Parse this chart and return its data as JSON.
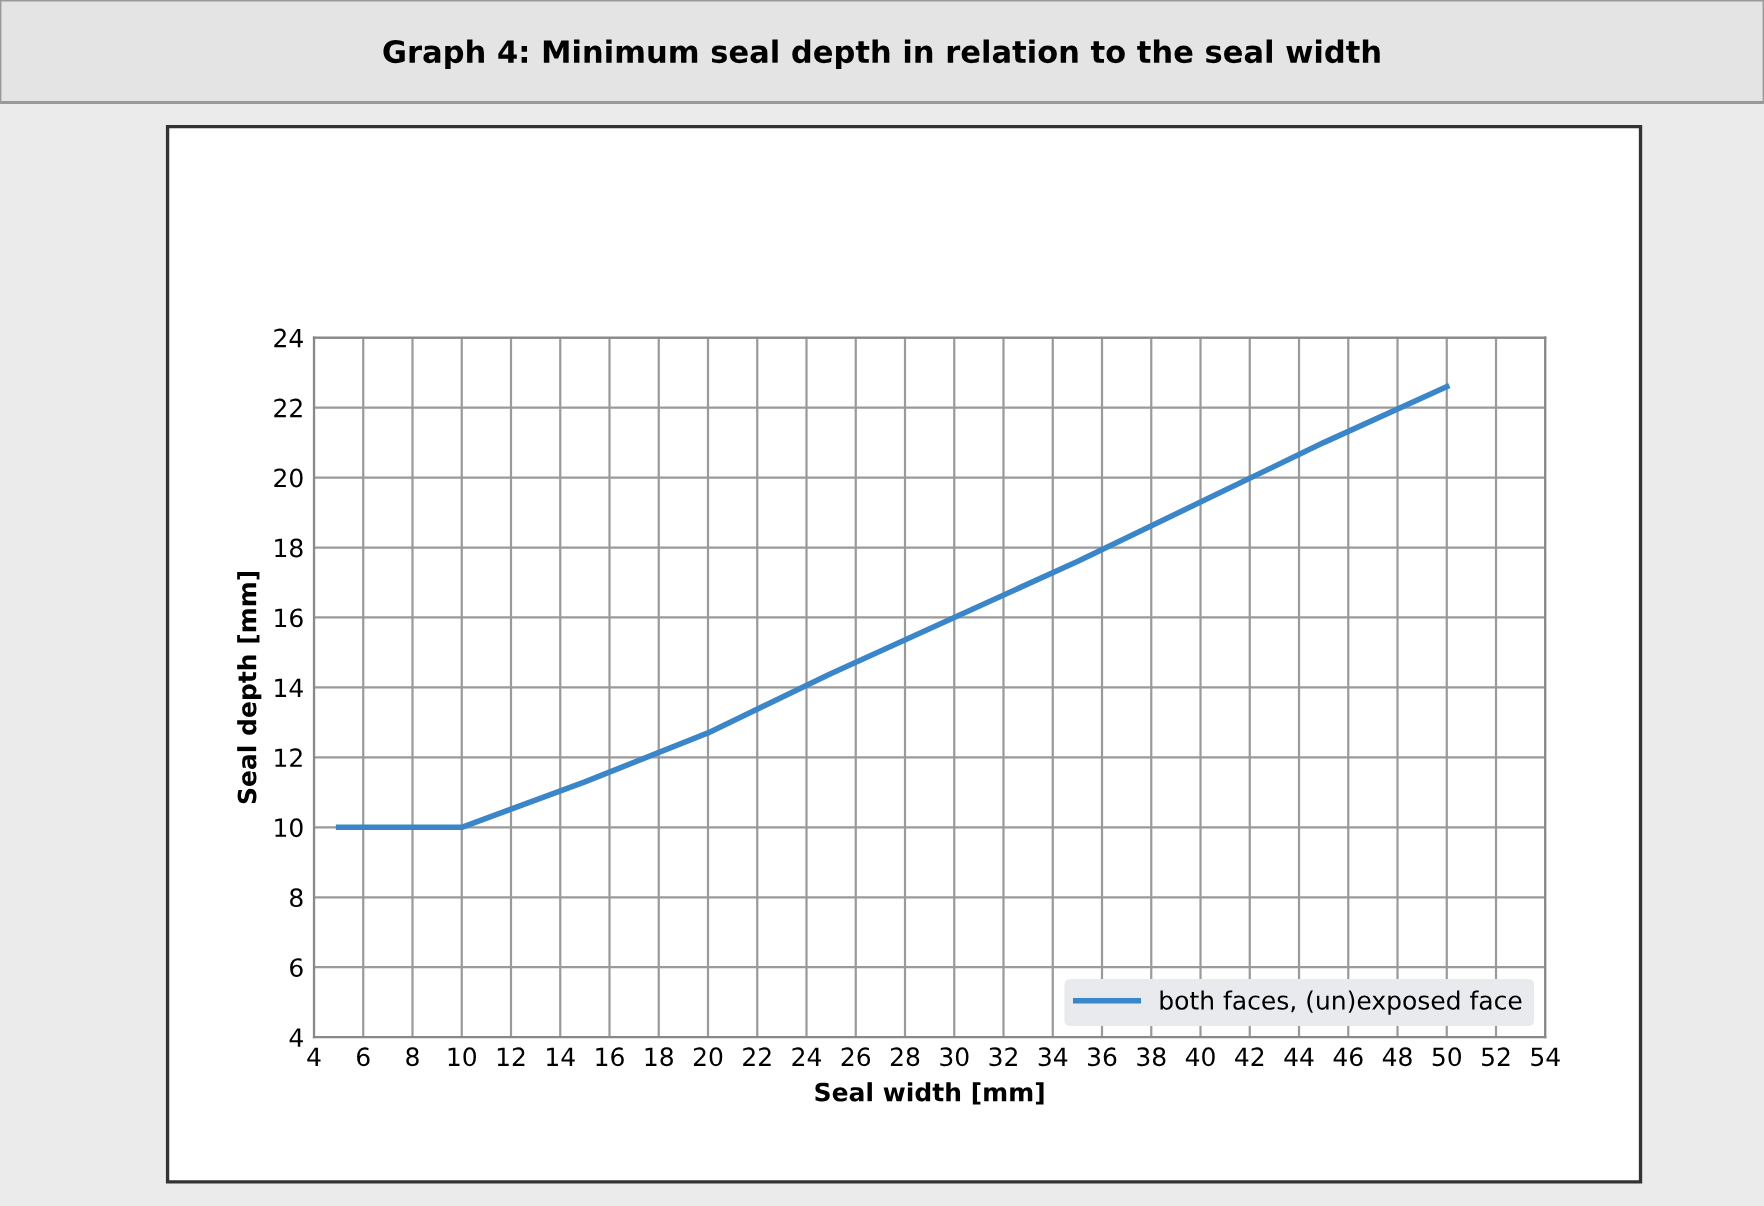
{
  "chart_data": {
    "type": "line",
    "title": "Graph 4: Minimum seal depth in relation to the seal width",
    "xlabel": "Seal width [mm]",
    "ylabel": "Seal depth [mm]",
    "x": [
      5,
      10,
      15,
      20,
      25,
      30,
      35,
      40,
      45,
      50
    ],
    "series": [
      {
        "name": "both faces, (un)exposed face",
        "color": "#3a86c8",
        "values": [
          10,
          10,
          11.3,
          12.7,
          14.4,
          16.0,
          17.6,
          19.3,
          21.0,
          22.6
        ]
      }
    ],
    "xlim": [
      4,
      54
    ],
    "xticks": [
      4,
      6,
      8,
      10,
      12,
      14,
      16,
      18,
      20,
      22,
      24,
      26,
      28,
      30,
      32,
      34,
      36,
      38,
      40,
      42,
      44,
      46,
      48,
      50,
      52,
      54
    ],
    "ylim": [
      4,
      24
    ],
    "yticks": [
      4,
      6,
      8,
      10,
      12,
      14,
      16,
      18,
      20,
      22,
      24
    ],
    "grid": true,
    "legend": "bottom right",
    "marker": "none",
    "line_style": "solid"
  }
}
